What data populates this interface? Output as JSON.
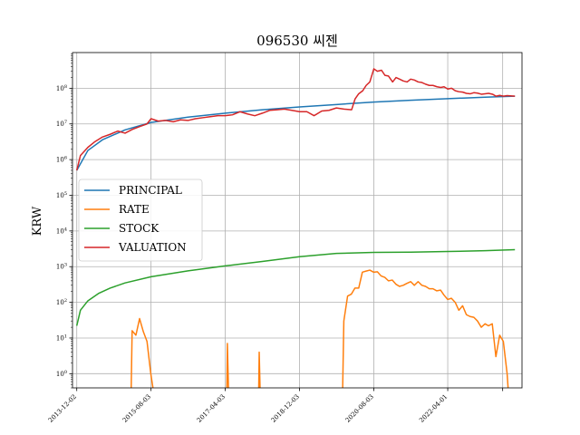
{
  "chart_data": {
    "type": "line",
    "title": "096530 씨젠",
    "xlabel": "",
    "ylabel": "KRW",
    "yscale": "log",
    "ylim": [
      0.4,
      1000000000.0
    ],
    "xlim": [
      "2013-10-28",
      "2023-12-01"
    ],
    "grid": true,
    "legend_position": "center-left",
    "x_tick_labels": [
      "2013-12-02",
      "2015-08-03",
      "2017-04-03",
      "2018-12-03",
      "2020-08-03",
      "2022-04-01"
    ],
    "y_tick_labels": [
      "10^0",
      "10^1",
      "10^2",
      "10^3",
      "10^4",
      "10^5",
      "10^6",
      "10^7",
      "10^8"
    ],
    "colors": {
      "PRINCIPAL": "#1f77b4",
      "RATE": "#ff7f0e",
      "STOCK": "#2ca02c",
      "VALUATION": "#d62728"
    },
    "series": [
      {
        "name": "PRINCIPAL",
        "points": [
          [
            "2013-12-02",
            500000
          ],
          [
            "2014-03-03",
            1800000
          ],
          [
            "2014-07-01",
            3600000
          ],
          [
            "2015-01-02",
            6800000
          ],
          [
            "2015-08-03",
            11000000
          ],
          [
            "2016-06-01",
            15500000
          ],
          [
            "2017-04-03",
            20000000
          ],
          [
            "2018-02-01",
            25000000
          ],
          [
            "2018-12-03",
            30000000
          ],
          [
            "2019-10-01",
            35000000
          ],
          [
            "2020-08-03",
            41000000
          ],
          [
            "2021-06-01",
            46000000
          ],
          [
            "2022-04-01",
            51000000
          ],
          [
            "2023-02-01",
            56000000
          ],
          [
            "2023-10-04",
            60000000
          ]
        ]
      },
      {
        "name": "RATE",
        "points": [
          [
            "2015-02-20",
            0.2
          ],
          [
            "2015-03-01",
            16
          ],
          [
            "2015-04-01",
            12
          ],
          [
            "2015-05-01",
            35
          ],
          [
            "2015-06-01",
            15
          ],
          [
            "2015-07-01",
            8
          ],
          [
            "2015-08-01",
            1
          ],
          [
            "2015-09-01",
            0.2
          ],
          [
            "2017-04-15",
            0.2
          ],
          [
            "2017-04-20",
            7
          ],
          [
            "2017-05-01",
            0.2
          ],
          [
            "2018-01-01",
            0.2
          ],
          [
            "2018-01-06",
            4
          ],
          [
            "2018-01-15",
            0.2
          ],
          [
            "2019-11-20",
            0.2
          ],
          [
            "2019-12-01",
            30
          ],
          [
            "2020-01-01",
            150
          ],
          [
            "2020-02-01",
            170
          ],
          [
            "2020-03-01",
            250
          ],
          [
            "2020-04-01",
            250
          ],
          [
            "2020-05-01",
            700
          ],
          [
            "2020-06-01",
            750
          ],
          [
            "2020-07-01",
            800
          ],
          [
            "2020-08-01",
            700
          ],
          [
            "2020-09-01",
            720
          ],
          [
            "2020-10-01",
            550
          ],
          [
            "2020-11-01",
            500
          ],
          [
            "2020-12-01",
            400
          ],
          [
            "2021-01-01",
            420
          ],
          [
            "2021-02-01",
            320
          ],
          [
            "2021-03-01",
            280
          ],
          [
            "2021-04-01",
            300
          ],
          [
            "2021-05-01",
            340
          ],
          [
            "2021-06-01",
            380
          ],
          [
            "2021-07-01",
            300
          ],
          [
            "2021-08-01",
            380
          ],
          [
            "2021-09-01",
            300
          ],
          [
            "2021-10-01",
            280
          ],
          [
            "2021-11-01",
            240
          ],
          [
            "2021-12-01",
            240
          ],
          [
            "2022-01-01",
            210
          ],
          [
            "2022-02-01",
            220
          ],
          [
            "2022-03-01",
            160
          ],
          [
            "2022-04-01",
            120
          ],
          [
            "2022-05-01",
            130
          ],
          [
            "2022-06-01",
            100
          ],
          [
            "2022-07-01",
            60
          ],
          [
            "2022-08-01",
            80
          ],
          [
            "2022-09-01",
            45
          ],
          [
            "2022-10-01",
            40
          ],
          [
            "2022-11-01",
            38
          ],
          [
            "2022-12-01",
            30
          ],
          [
            "2023-01-01",
            20
          ],
          [
            "2023-02-01",
            25
          ],
          [
            "2023-03-01",
            22
          ],
          [
            "2023-04-01",
            25
          ],
          [
            "2023-05-01",
            3
          ],
          [
            "2023-06-01",
            12
          ],
          [
            "2023-07-01",
            8
          ],
          [
            "2023-08-01",
            1
          ],
          [
            "2023-08-15",
            0.2
          ]
        ]
      },
      {
        "name": "STOCK",
        "points": [
          [
            "2013-12-02",
            22
          ],
          [
            "2014-01-01",
            60
          ],
          [
            "2014-03-03",
            110
          ],
          [
            "2014-06-02",
            180
          ],
          [
            "2014-09-01",
            250
          ],
          [
            "2015-01-02",
            350
          ],
          [
            "2015-08-03",
            520
          ],
          [
            "2016-06-01",
            760
          ],
          [
            "2017-04-03",
            1050
          ],
          [
            "2018-02-01",
            1400
          ],
          [
            "2018-12-03",
            1900
          ],
          [
            "2019-10-01",
            2350
          ],
          [
            "2020-08-03",
            2500
          ],
          [
            "2021-06-01",
            2550
          ],
          [
            "2022-04-01",
            2650
          ],
          [
            "2023-02-01",
            2800
          ],
          [
            "2023-10-04",
            3000
          ]
        ]
      },
      {
        "name": "VALUATION",
        "points": [
          [
            "2013-12-02",
            500000
          ],
          [
            "2014-01-01",
            1300000
          ],
          [
            "2014-03-03",
            2200000
          ],
          [
            "2014-05-01",
            3200000
          ],
          [
            "2014-07-01",
            4300000
          ],
          [
            "2014-09-01",
            5100000
          ],
          [
            "2014-11-03",
            6300000
          ],
          [
            "2015-01-02",
            5500000
          ],
          [
            "2015-03-02",
            7000000
          ],
          [
            "2015-05-04",
            8500000
          ],
          [
            "2015-07-01",
            10000000
          ],
          [
            "2015-08-03",
            14000000
          ],
          [
            "2015-10-01",
            12000000
          ],
          [
            "2015-12-01",
            12500000
          ],
          [
            "2016-02-01",
            11500000
          ],
          [
            "2016-04-01",
            13000000
          ],
          [
            "2016-06-01",
            12500000
          ],
          [
            "2016-08-01",
            14000000
          ],
          [
            "2016-10-04",
            15000000
          ],
          [
            "2016-12-01",
            16000000
          ],
          [
            "2017-02-01",
            17000000
          ],
          [
            "2017-04-03",
            17000000
          ],
          [
            "2017-06-01",
            18000000
          ],
          [
            "2017-08-01",
            22000000
          ],
          [
            "2017-10-02",
            19000000
          ],
          [
            "2017-12-01",
            17000000
          ],
          [
            "2018-02-01",
            20000000
          ],
          [
            "2018-04-02",
            24000000
          ],
          [
            "2018-06-01",
            25000000
          ],
          [
            "2018-08-01",
            26000000
          ],
          [
            "2018-10-01",
            24000000
          ],
          [
            "2018-12-03",
            22000000
          ],
          [
            "2019-02-01",
            22000000
          ],
          [
            "2019-04-01",
            17000000
          ],
          [
            "2019-06-03",
            23000000
          ],
          [
            "2019-08-01",
            24000000
          ],
          [
            "2019-10-01",
            28000000
          ],
          [
            "2019-12-02",
            26000000
          ],
          [
            "2020-02-03",
            25000000
          ],
          [
            "2020-03-02",
            50000000
          ],
          [
            "2020-04-01",
            70000000
          ],
          [
            "2020-05-04",
            85000000
          ],
          [
            "2020-06-01",
            120000000
          ],
          [
            "2020-07-01",
            150000000
          ],
          [
            "2020-08-03",
            350000000
          ],
          [
            "2020-09-01",
            300000000
          ],
          [
            "2020-10-05",
            320000000
          ],
          [
            "2020-11-02",
            230000000
          ],
          [
            "2020-12-01",
            220000000
          ],
          [
            "2021-01-04",
            150000000
          ],
          [
            "2021-02-01",
            200000000
          ],
          [
            "2021-03-02",
            180000000
          ],
          [
            "2021-04-01",
            160000000
          ],
          [
            "2021-05-03",
            150000000
          ],
          [
            "2021-06-01",
            180000000
          ],
          [
            "2021-07-01",
            170000000
          ],
          [
            "2021-08-02",
            150000000
          ],
          [
            "2021-09-01",
            145000000
          ],
          [
            "2021-10-01",
            130000000
          ],
          [
            "2021-11-01",
            120000000
          ],
          [
            "2021-12-01",
            120000000
          ],
          [
            "2022-01-03",
            110000000
          ],
          [
            "2022-02-03",
            105000000
          ],
          [
            "2022-03-02",
            110000000
          ],
          [
            "2022-04-01",
            95000000
          ],
          [
            "2022-05-02",
            100000000
          ],
          [
            "2022-06-02",
            85000000
          ],
          [
            "2022-07-01",
            80000000
          ],
          [
            "2022-08-01",
            78000000
          ],
          [
            "2022-09-01",
            72000000
          ],
          [
            "2022-10-04",
            70000000
          ],
          [
            "2022-11-01",
            75000000
          ],
          [
            "2022-12-01",
            73000000
          ],
          [
            "2023-01-02",
            68000000
          ],
          [
            "2023-02-01",
            70000000
          ],
          [
            "2023-03-02",
            72000000
          ],
          [
            "2023-04-03",
            68000000
          ],
          [
            "2023-05-02",
            60000000
          ],
          [
            "2023-06-01",
            63000000
          ],
          [
            "2023-07-03",
            60000000
          ],
          [
            "2023-08-01",
            62000000
          ],
          [
            "2023-10-04",
            60000000
          ]
        ]
      }
    ]
  }
}
